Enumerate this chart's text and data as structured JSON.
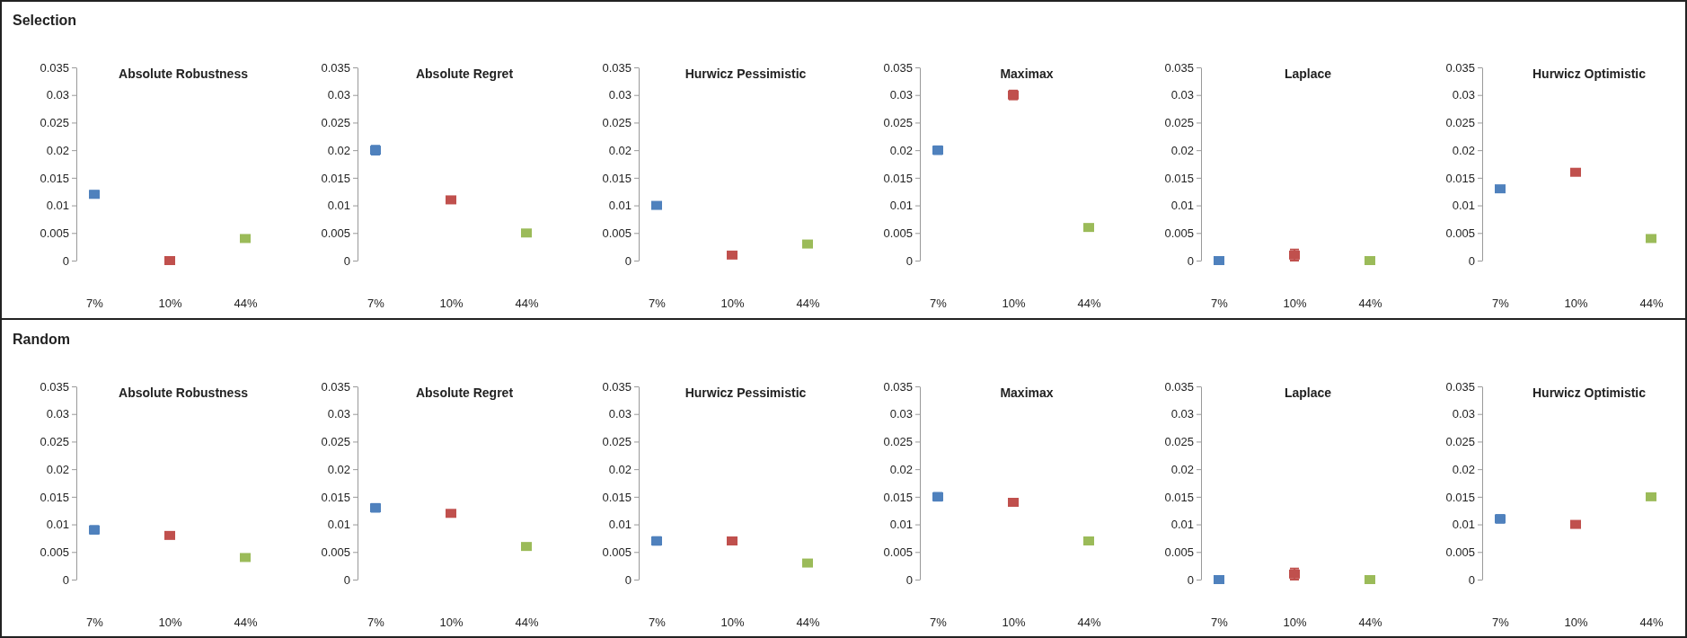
{
  "chart_data": [
    {
      "type": "scatter",
      "title": "Absolute Robustness",
      "annotations": [
        "Selection"
      ],
      "categories": [
        "7%",
        "10%",
        "44%"
      ],
      "marker": "square",
      "ylim": [
        0,
        0.035
      ],
      "yticks": [
        0,
        0.005,
        0.01,
        0.015,
        0.02,
        0.025,
        0.03,
        0.035
      ],
      "series": [
        {
          "colors": [
            "#4f81bd",
            "#c0504d",
            "#9bbb59"
          ],
          "values": [
            0.012,
            0,
            0.004
          ],
          "errors": [
            0.0006,
            null,
            null
          ]
        }
      ]
    },
    {
      "type": "scatter",
      "title": "Absolute Regret",
      "categories": [
        "7%",
        "10%",
        "44%"
      ],
      "marker": "square",
      "ylim": [
        0,
        0.035
      ],
      "yticks": [
        0,
        0.005,
        0.01,
        0.015,
        0.02,
        0.025,
        0.03,
        0.035
      ],
      "series": [
        {
          "colors": [
            "#4f81bd",
            "#c0504d",
            "#9bbb59"
          ],
          "values": [
            0.02,
            0.011,
            0.005
          ],
          "errors": [
            0.0008,
            null,
            null
          ]
        }
      ]
    },
    {
      "type": "scatter",
      "title": "Hurwicz Pessimistic",
      "categories": [
        "7%",
        "10%",
        "44%"
      ],
      "marker": "square",
      "ylim": [
        0,
        0.035
      ],
      "yticks": [
        0,
        0.005,
        0.01,
        0.015,
        0.02,
        0.025,
        0.03,
        0.035
      ],
      "series": [
        {
          "colors": [
            "#4f81bd",
            "#c0504d",
            "#9bbb59"
          ],
          "values": [
            0.01,
            0.001,
            0.003
          ],
          "errors": [
            null,
            null,
            null
          ]
        }
      ]
    },
    {
      "type": "scatter",
      "title": "Maximax",
      "categories": [
        "7%",
        "10%",
        "44%"
      ],
      "marker": "square",
      "ylim": [
        0,
        0.035
      ],
      "yticks": [
        0,
        0.005,
        0.01,
        0.015,
        0.02,
        0.025,
        0.03,
        0.035
      ],
      "series": [
        {
          "colors": [
            "#4f81bd",
            "#c0504d",
            "#9bbb59"
          ],
          "values": [
            0.02,
            0.03,
            0.006
          ],
          "errors": [
            0.0007,
            0.0008,
            null
          ]
        }
      ]
    },
    {
      "type": "scatter",
      "title": "Laplace",
      "categories": [
        "7%",
        "10%",
        "44%"
      ],
      "marker": "square",
      "ylim": [
        0,
        0.035
      ],
      "yticks": [
        0,
        0.005,
        0.01,
        0.015,
        0.02,
        0.025,
        0.03,
        0.035
      ],
      "series": [
        {
          "colors": [
            "#4f81bd",
            "#c0504d",
            "#9bbb59"
          ],
          "values": [
            0,
            0.001,
            0
          ],
          "errors": [
            null,
            0.001,
            null
          ]
        }
      ]
    },
    {
      "type": "scatter",
      "title": "Hurwicz Optimistic",
      "categories": [
        "7%",
        "10%",
        "44%"
      ],
      "marker": "square",
      "ylim": [
        0,
        0.035
      ],
      "yticks": [
        0,
        0.005,
        0.01,
        0.015,
        0.02,
        0.025,
        0.03,
        0.035
      ],
      "series": [
        {
          "colors": [
            "#4f81bd",
            "#c0504d",
            "#9bbb59"
          ],
          "values": [
            0.013,
            0.016,
            0.004
          ],
          "errors": [
            null,
            null,
            null
          ]
        }
      ]
    },
    {
      "type": "scatter",
      "title": "Absolute Robustness",
      "annotations": [
        "Random"
      ],
      "categories": [
        "7%",
        "10%",
        "44%"
      ],
      "marker": "square",
      "ylim": [
        0,
        0.035
      ],
      "yticks": [
        0,
        0.005,
        0.01,
        0.015,
        0.02,
        0.025,
        0.03,
        0.035
      ],
      "series": [
        {
          "colors": [
            "#4f81bd",
            "#c0504d",
            "#9bbb59"
          ],
          "values": [
            0.009,
            0.008,
            0.004
          ],
          "errors": [
            0.0007,
            null,
            null
          ]
        }
      ]
    },
    {
      "type": "scatter",
      "title": "Absolute Regret",
      "categories": [
        "7%",
        "10%",
        "44%"
      ],
      "marker": "square",
      "ylim": [
        0,
        0.035
      ],
      "yticks": [
        0,
        0.005,
        0.01,
        0.015,
        0.02,
        0.025,
        0.03,
        0.035
      ],
      "series": [
        {
          "colors": [
            "#4f81bd",
            "#c0504d",
            "#9bbb59"
          ],
          "values": [
            0.013,
            0.012,
            0.006
          ],
          "errors": [
            0.0007,
            null,
            null
          ]
        }
      ]
    },
    {
      "type": "scatter",
      "title": "Hurwicz Pessimistic",
      "categories": [
        "7%",
        "10%",
        "44%"
      ],
      "marker": "square",
      "ylim": [
        0,
        0.035
      ],
      "yticks": [
        0,
        0.005,
        0.01,
        0.015,
        0.02,
        0.025,
        0.03,
        0.035
      ],
      "series": [
        {
          "colors": [
            "#4f81bd",
            "#c0504d",
            "#9bbb59"
          ],
          "values": [
            0.007,
            0.007,
            0.003
          ],
          "errors": [
            0.0007,
            null,
            null
          ]
        }
      ]
    },
    {
      "type": "scatter",
      "title": "Maximax",
      "categories": [
        "7%",
        "10%",
        "44%"
      ],
      "marker": "square",
      "ylim": [
        0,
        0.035
      ],
      "yticks": [
        0,
        0.005,
        0.01,
        0.015,
        0.02,
        0.025,
        0.03,
        0.035
      ],
      "series": [
        {
          "colors": [
            "#4f81bd",
            "#c0504d",
            "#9bbb59"
          ],
          "values": [
            0.015,
            0.014,
            0.007
          ],
          "errors": [
            0.0007,
            null,
            null
          ]
        }
      ]
    },
    {
      "type": "scatter",
      "title": "Laplace",
      "categories": [
        "7%",
        "10%",
        "44%"
      ],
      "marker": "square",
      "ylim": [
        0,
        0.035
      ],
      "yticks": [
        0,
        0.005,
        0.01,
        0.015,
        0.02,
        0.025,
        0.03,
        0.035
      ],
      "series": [
        {
          "colors": [
            "#4f81bd",
            "#c0504d",
            "#9bbb59"
          ],
          "values": [
            0,
            0.001,
            0
          ],
          "errors": [
            null,
            0.001,
            null
          ]
        }
      ]
    },
    {
      "type": "scatter",
      "title": "Hurwicz Optimistic",
      "categories": [
        "7%",
        "10%",
        "44%"
      ],
      "marker": "square",
      "ylim": [
        0,
        0.035
      ],
      "yticks": [
        0,
        0.005,
        0.01,
        0.015,
        0.02,
        0.025,
        0.03,
        0.035
      ],
      "series": [
        {
          "colors": [
            "#4f81bd",
            "#c0504d",
            "#9bbb59"
          ],
          "values": [
            0.011,
            0.01,
            0.015
          ],
          "errors": [
            0.0007,
            null,
            null
          ]
        }
      ]
    }
  ]
}
